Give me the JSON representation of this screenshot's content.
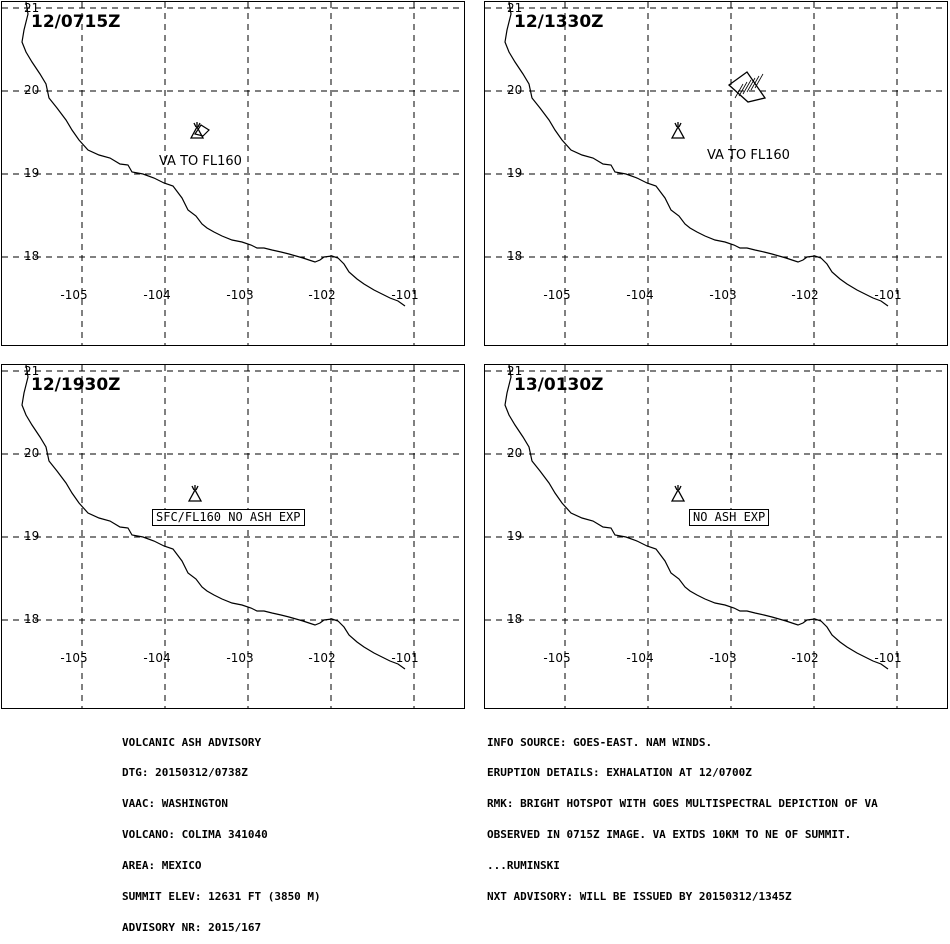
{
  "panels": [
    {
      "time": "12/0715Z",
      "label": "VA TO FL160"
    },
    {
      "time": "12/1330Z",
      "label": "VA TO FL160"
    },
    {
      "time": "12/1930Z",
      "box_label": "SFC/FL160 NO ASH EXP"
    },
    {
      "time": "13/0130Z",
      "box_label": "NO ASH EXP"
    }
  ],
  "lat_labels": [
    "21",
    "20",
    "19",
    "18"
  ],
  "lon_labels": [
    "-105",
    "-104",
    "-103",
    "-102",
    "-101"
  ],
  "advisory_left": [
    "VOLCANIC ASH ADVISORY",
    "DTG: 20150312/0738Z",
    "VAAC: WASHINGTON",
    "VOLCANO: COLIMA 341040",
    "AREA: MEXICO",
    "SUMMIT ELEV: 12631 FT (3850 M)",
    "ADVISORY NR: 2015/167"
  ],
  "advisory_right": [
    "INFO SOURCE: GOES-EAST. NAM WINDS.",
    "ERUPTION DETAILS: EXHALATION AT 12/0700Z",
    "RMK: BRIGHT HOTSPOT WITH GOES MULTISPECTRAL DEPICTION OF VA",
    "OBSERVED IN 0715Z IMAGE. VA EXTDS 10KM TO NE OF SUMMIT.",
    "...RUMINSKI",
    "NXT ADVISORY: WILL BE ISSUED BY 20150312/1345Z"
  ]
}
